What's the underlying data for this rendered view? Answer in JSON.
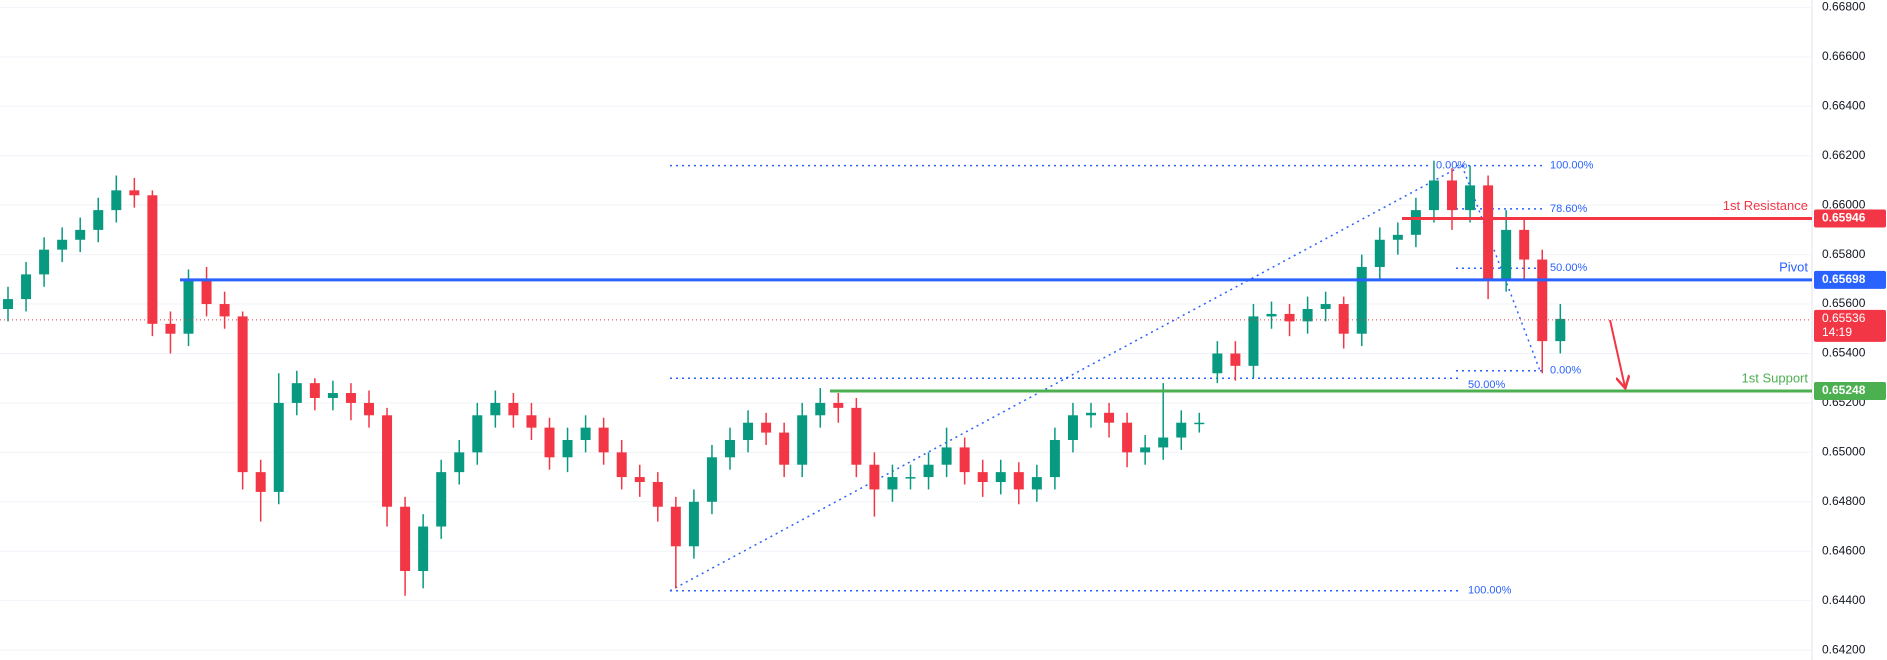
{
  "chart_data": {
    "type": "candlestick",
    "up_color": "#089981",
    "down_color": "#f23645",
    "ylim": [
      0.6416,
      0.6683
    ],
    "yticks": [
      {
        "value": 0.642,
        "label": "0.64200"
      },
      {
        "value": 0.644,
        "label": "0.64400"
      },
      {
        "value": 0.646,
        "label": "0.64600"
      },
      {
        "value": 0.648,
        "label": "0.64800"
      },
      {
        "value": 0.65,
        "label": "0.65000"
      },
      {
        "value": 0.652,
        "label": "0.65200"
      },
      {
        "value": 0.654,
        "label": "0.65400"
      },
      {
        "value": 0.656,
        "label": "0.65600"
      },
      {
        "value": 0.658,
        "label": "0.65800"
      },
      {
        "value": 0.66,
        "label": "0.66000"
      },
      {
        "value": 0.662,
        "label": "0.66200"
      },
      {
        "value": 0.664,
        "label": "0.66400"
      },
      {
        "value": 0.666,
        "label": "0.66600"
      },
      {
        "value": 0.668,
        "label": "0.66800"
      }
    ],
    "grid": true,
    "open": [
      0.6558,
      0.6562,
      0.6572,
      0.6582,
      0.6586,
      0.659,
      0.6598,
      0.6606,
      0.6604,
      0.6552,
      0.6548,
      0.657,
      0.656,
      0.6555,
      0.6492,
      0.6484,
      0.652,
      0.6528,
      0.6522,
      0.6524,
      0.652,
      0.6515,
      0.6478,
      0.6452,
      0.647,
      0.6492,
      0.65,
      0.6515,
      0.652,
      0.6515,
      0.651,
      0.6498,
      0.6505,
      0.651,
      0.65,
      0.649,
      0.6488,
      0.6478,
      0.6462,
      0.648,
      0.6498,
      0.6505,
      0.6512,
      0.6508,
      0.6495,
      0.6515,
      0.652,
      0.6518,
      0.6495,
      0.6485,
      0.649,
      0.649,
      0.6495,
      0.6502,
      0.6492,
      0.6488,
      0.6492,
      0.6485,
      0.649,
      0.6505,
      0.6515,
      0.6516,
      0.6512,
      0.65,
      0.6502,
      0.6506,
      0.6512,
      0.6532,
      0.654,
      0.6535,
      0.6555,
      0.6556,
      0.6553,
      0.6558,
      0.656,
      0.6548,
      0.6575,
      0.6586,
      0.6588,
      0.6598,
      0.661,
      0.6598,
      0.6608,
      0.657,
      0.659,
      0.6578,
      0.6545
    ],
    "high": [
      0.6567,
      0.6577,
      0.6587,
      0.6591,
      0.6595,
      0.6603,
      0.6612,
      0.6611,
      0.6606,
      0.6557,
      0.6574,
      0.6575,
      0.6565,
      0.6557,
      0.6497,
      0.6532,
      0.6533,
      0.653,
      0.6529,
      0.6528,
      0.6525,
      0.6518,
      0.6482,
      0.6475,
      0.6497,
      0.6505,
      0.652,
      0.6525,
      0.6524,
      0.652,
      0.6514,
      0.651,
      0.6515,
      0.6514,
      0.6505,
      0.6495,
      0.6492,
      0.6482,
      0.6485,
      0.6503,
      0.651,
      0.6517,
      0.6516,
      0.6512,
      0.652,
      0.6526,
      0.6524,
      0.6522,
      0.65,
      0.6495,
      0.6495,
      0.65,
      0.651,
      0.6506,
      0.6497,
      0.6497,
      0.6496,
      0.6495,
      0.651,
      0.652,
      0.652,
      0.652,
      0.6516,
      0.6507,
      0.6528,
      0.6517,
      0.6516,
      0.6545,
      0.6545,
      0.656,
      0.6561,
      0.656,
      0.6563,
      0.6565,
      0.6563,
      0.658,
      0.6591,
      0.6593,
      0.6603,
      0.6618,
      0.6615,
      0.6616,
      0.6612,
      0.6598,
      0.6594,
      0.6582,
      0.656
    ],
    "low": [
      0.6553,
      0.6557,
      0.6567,
      0.6577,
      0.6581,
      0.6585,
      0.6593,
      0.6599,
      0.6547,
      0.654,
      0.6543,
      0.6555,
      0.655,
      0.6485,
      0.6472,
      0.6479,
      0.6515,
      0.6517,
      0.6517,
      0.6513,
      0.651,
      0.647,
      0.6442,
      0.6445,
      0.6465,
      0.6487,
      0.6495,
      0.651,
      0.651,
      0.6505,
      0.6493,
      0.6492,
      0.65,
      0.6495,
      0.6485,
      0.6482,
      0.6472,
      0.6445,
      0.6457,
      0.6475,
      0.6493,
      0.65,
      0.6503,
      0.649,
      0.649,
      0.651,
      0.6512,
      0.649,
      0.6474,
      0.648,
      0.6485,
      0.6485,
      0.649,
      0.6487,
      0.6482,
      0.6483,
      0.6479,
      0.648,
      0.6485,
      0.65,
      0.651,
      0.6506,
      0.6494,
      0.6495,
      0.6497,
      0.6501,
      0.6508,
      0.6528,
      0.6529,
      0.653,
      0.655,
      0.6547,
      0.6548,
      0.6553,
      0.6542,
      0.6543,
      0.657,
      0.658,
      0.6583,
      0.6593,
      0.659,
      0.6593,
      0.6562,
      0.6565,
      0.657,
      0.6532,
      0.654
    ],
    "close": [
      0.6562,
      0.6572,
      0.6582,
      0.6586,
      0.659,
      0.6598,
      0.6606,
      0.6604,
      0.6552,
      0.6548,
      0.657,
      0.656,
      0.6555,
      0.6492,
      0.6484,
      0.652,
      0.6528,
      0.6522,
      0.6524,
      0.652,
      0.6515,
      0.6478,
      0.6452,
      0.647,
      0.6492,
      0.65,
      0.6515,
      0.652,
      0.6515,
      0.651,
      0.6498,
      0.6505,
      0.651,
      0.65,
      0.649,
      0.6488,
      0.6478,
      0.6462,
      0.648,
      0.6498,
      0.6505,
      0.6512,
      0.6508,
      0.6495,
      0.6515,
      0.652,
      0.6518,
      0.6495,
      0.6485,
      0.649,
      0.649,
      0.6495,
      0.6502,
      0.6492,
      0.6488,
      0.6492,
      0.6485,
      0.649,
      0.6505,
      0.6515,
      0.6516,
      0.6512,
      0.65,
      0.6502,
      0.6506,
      0.6512,
      0.6512,
      0.654,
      0.6535,
      0.6555,
      0.6556,
      0.6553,
      0.6558,
      0.656,
      0.6548,
      0.6575,
      0.6586,
      0.6588,
      0.6598,
      0.661,
      0.6598,
      0.6608,
      0.657,
      0.659,
      0.6578,
      0.6545,
      0.6554
    ],
    "levels": [
      {
        "name": "1st Resistance",
        "value": 0.65946,
        "color": "#f23645"
      },
      {
        "name": "Pivot",
        "value": 0.65698,
        "color": "#2962ff"
      },
      {
        "name": "1st Support",
        "value": 0.65248,
        "color": "#4caf50"
      }
    ],
    "current_price": {
      "value": 0.65536,
      "countdown": "14:19",
      "color": "#f23645"
    },
    "fib_retracements": [
      {
        "color": "#2962ff",
        "from": 0.6444,
        "to": 0.6616,
        "levels": [
          {
            "text": "0.00%",
            "price": 0.6616
          },
          {
            "text": "50.00%",
            "price": 0.653
          },
          {
            "text": "100.00%",
            "price": 0.6444
          }
        ]
      },
      {
        "color": "#2962ff",
        "from": 0.6616,
        "to": 0.6533,
        "levels": [
          {
            "text": "100.00%",
            "price": 0.6616
          },
          {
            "text": "78.60%",
            "price": 0.65985
          },
          {
            "text": "50.00%",
            "price": 0.65745
          },
          {
            "text": "0.00%",
            "price": 0.6533
          }
        ]
      }
    ]
  }
}
